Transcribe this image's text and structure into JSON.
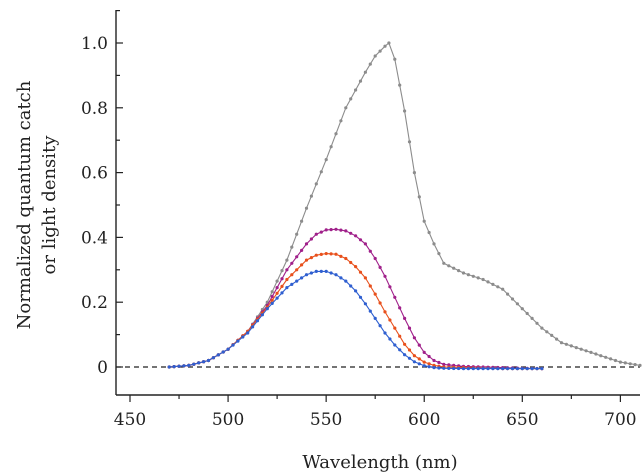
{
  "chart_data": {
    "type": "line",
    "title": "",
    "xlabel": "Wavelength (nm)",
    "ylabel_lines": [
      "Normalized quantum catch",
      "or light density"
    ],
    "xlim": [
      450,
      710
    ],
    "ylim": [
      -0.08,
      1.1
    ],
    "x_ticks": [
      450,
      500,
      550,
      600,
      650,
      700
    ],
    "y_ticks": [
      {
        "value": 0,
        "label": "0"
      },
      {
        "value": 0.2,
        "label": "0.2"
      },
      {
        "value": 0.4,
        "label": "0.4"
      },
      {
        "value": 0.6,
        "label": "0.6"
      },
      {
        "value": 0.8,
        "label": "0.8"
      },
      {
        "value": 1.0,
        "label": "1.0"
      }
    ],
    "reference_line_y": 0,
    "series": [
      {
        "color": "#8c8c8c",
        "x": [
          470,
          480,
          490,
          500,
          510,
          520,
          530,
          540,
          550,
          560,
          570,
          575,
          580,
          582,
          585,
          590,
          595,
          600,
          605,
          610,
          620,
          630,
          640,
          650,
          660,
          670,
          680,
          690,
          700,
          710
        ],
        "y": [
          0.0,
          0.005,
          0.02,
          0.055,
          0.11,
          0.2,
          0.33,
          0.49,
          0.64,
          0.8,
          0.91,
          0.96,
          0.99,
          1.0,
          0.95,
          0.79,
          0.6,
          0.45,
          0.38,
          0.32,
          0.29,
          0.27,
          0.24,
          0.18,
          0.12,
          0.075,
          0.055,
          0.035,
          0.015,
          0.005
        ]
      },
      {
        "color": "#a0208a",
        "x": [
          470,
          480,
          490,
          500,
          510,
          520,
          530,
          540,
          545,
          550,
          555,
          560,
          565,
          570,
          575,
          580,
          585,
          590,
          595,
          600,
          605,
          610,
          620,
          630,
          640,
          650,
          660
        ],
        "y": [
          0.0,
          0.005,
          0.02,
          0.055,
          0.11,
          0.19,
          0.3,
          0.38,
          0.41,
          0.423,
          0.425,
          0.42,
          0.405,
          0.38,
          0.335,
          0.28,
          0.215,
          0.15,
          0.09,
          0.045,
          0.02,
          0.008,
          0.002,
          0.0,
          -0.002,
          -0.004,
          -0.005
        ]
      },
      {
        "color": "#e8501c",
        "x": [
          470,
          480,
          490,
          500,
          510,
          520,
          530,
          540,
          545,
          550,
          555,
          560,
          565,
          570,
          575,
          580,
          585,
          590,
          595,
          600,
          605,
          610,
          620,
          630,
          640,
          650,
          660
        ],
        "y": [
          0.0,
          0.005,
          0.02,
          0.055,
          0.11,
          0.185,
          0.27,
          0.33,
          0.345,
          0.35,
          0.348,
          0.335,
          0.31,
          0.275,
          0.225,
          0.17,
          0.12,
          0.07,
          0.035,
          0.015,
          0.005,
          0.0,
          -0.002,
          -0.004,
          -0.005,
          -0.005,
          -0.005
        ]
      },
      {
        "color": "#2f5fd0",
        "x": [
          470,
          480,
          490,
          500,
          510,
          520,
          530,
          540,
          545,
          550,
          555,
          560,
          565,
          570,
          575,
          580,
          585,
          590,
          595,
          600,
          605,
          610,
          620,
          630,
          640,
          650,
          660
        ],
        "y": [
          0.0,
          0.005,
          0.02,
          0.055,
          0.105,
          0.18,
          0.245,
          0.285,
          0.295,
          0.295,
          0.285,
          0.265,
          0.235,
          0.195,
          0.15,
          0.105,
          0.068,
          0.038,
          0.016,
          0.004,
          -0.002,
          -0.004,
          -0.005,
          -0.005,
          -0.005,
          -0.005,
          -0.005
        ]
      }
    ]
  }
}
